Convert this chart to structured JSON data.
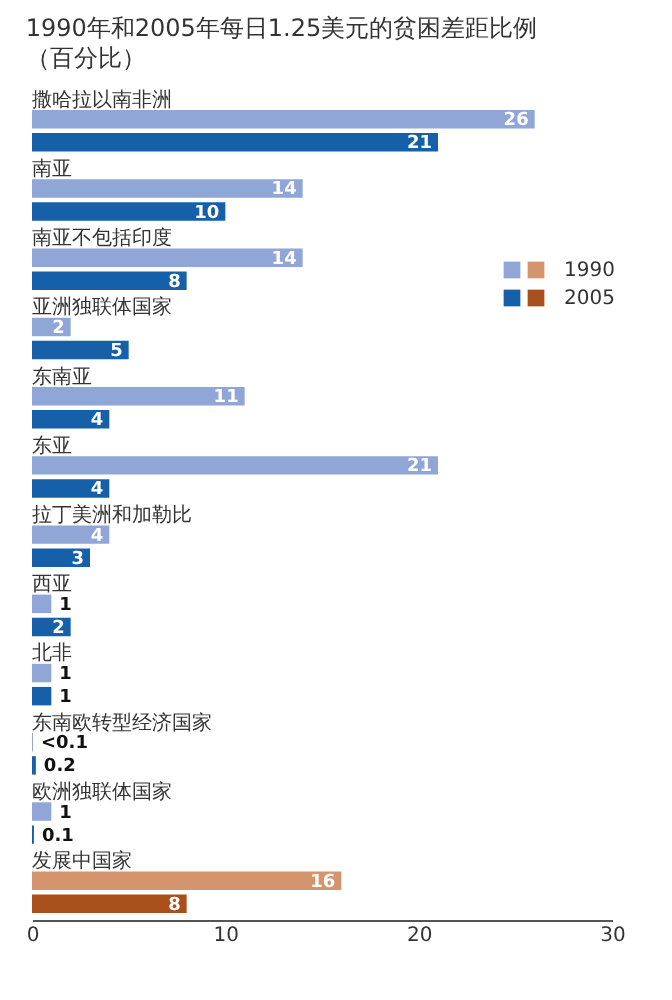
{
  "chart_data": {
    "type": "bar",
    "orientation": "horizontal",
    "title": "1990年和2005年每日1.25美元的贫困差距比例",
    "subtitle": "（百分比）",
    "categories": [
      "撒哈拉以南非洲",
      "南亚",
      "南亚不包括印度",
      "亚洲独联体国家",
      "东南亚",
      "东亚",
      "拉丁美洲和加勒比",
      "西亚",
      "北非",
      "东南欧转型经济国家",
      "欧洲独联体国家",
      "发展中国家"
    ],
    "series": [
      {
        "name": "1990",
        "color": "#8fa6d6",
        "colors": [
          "#8fa6d6",
          "#8fa6d6",
          "#8fa6d6",
          "#8fa6d6",
          "#8fa6d6",
          "#8fa6d6",
          "#8fa6d6",
          "#8fa6d6",
          "#8fa6d6",
          "#8fa6d6",
          "#8fa6d6",
          "#d4956e"
        ],
        "values": [
          26,
          14,
          14,
          2,
          11,
          21,
          4,
          1,
          1,
          0.05,
          1,
          16
        ],
        "value_labels": [
          "26",
          "14",
          "14",
          "2",
          "11",
          "21",
          "4",
          "1",
          "1",
          "<0.1",
          "1",
          "16"
        ]
      },
      {
        "name": "2005",
        "color": "#1560a8",
        "colors": [
          "#1560a8",
          "#1560a8",
          "#1560a8",
          "#1560a8",
          "#1560a8",
          "#1560a8",
          "#1560a8",
          "#1560a8",
          "#1560a8",
          "#1560a8",
          "#1560a8",
          "#a94f1c"
        ],
        "values": [
          21,
          10,
          8,
          5,
          4,
          4,
          3,
          2,
          1,
          0.2,
          0.1,
          8
        ],
        "value_labels": [
          "21",
          "10",
          "8",
          "5",
          "4",
          "4",
          "3",
          "2",
          "1",
          "0.2",
          "0.1",
          "8"
        ]
      }
    ],
    "xlim": [
      0,
      30
    ],
    "xticks": [
      0,
      10,
      20,
      30
    ],
    "grid": false,
    "legend": "right"
  }
}
